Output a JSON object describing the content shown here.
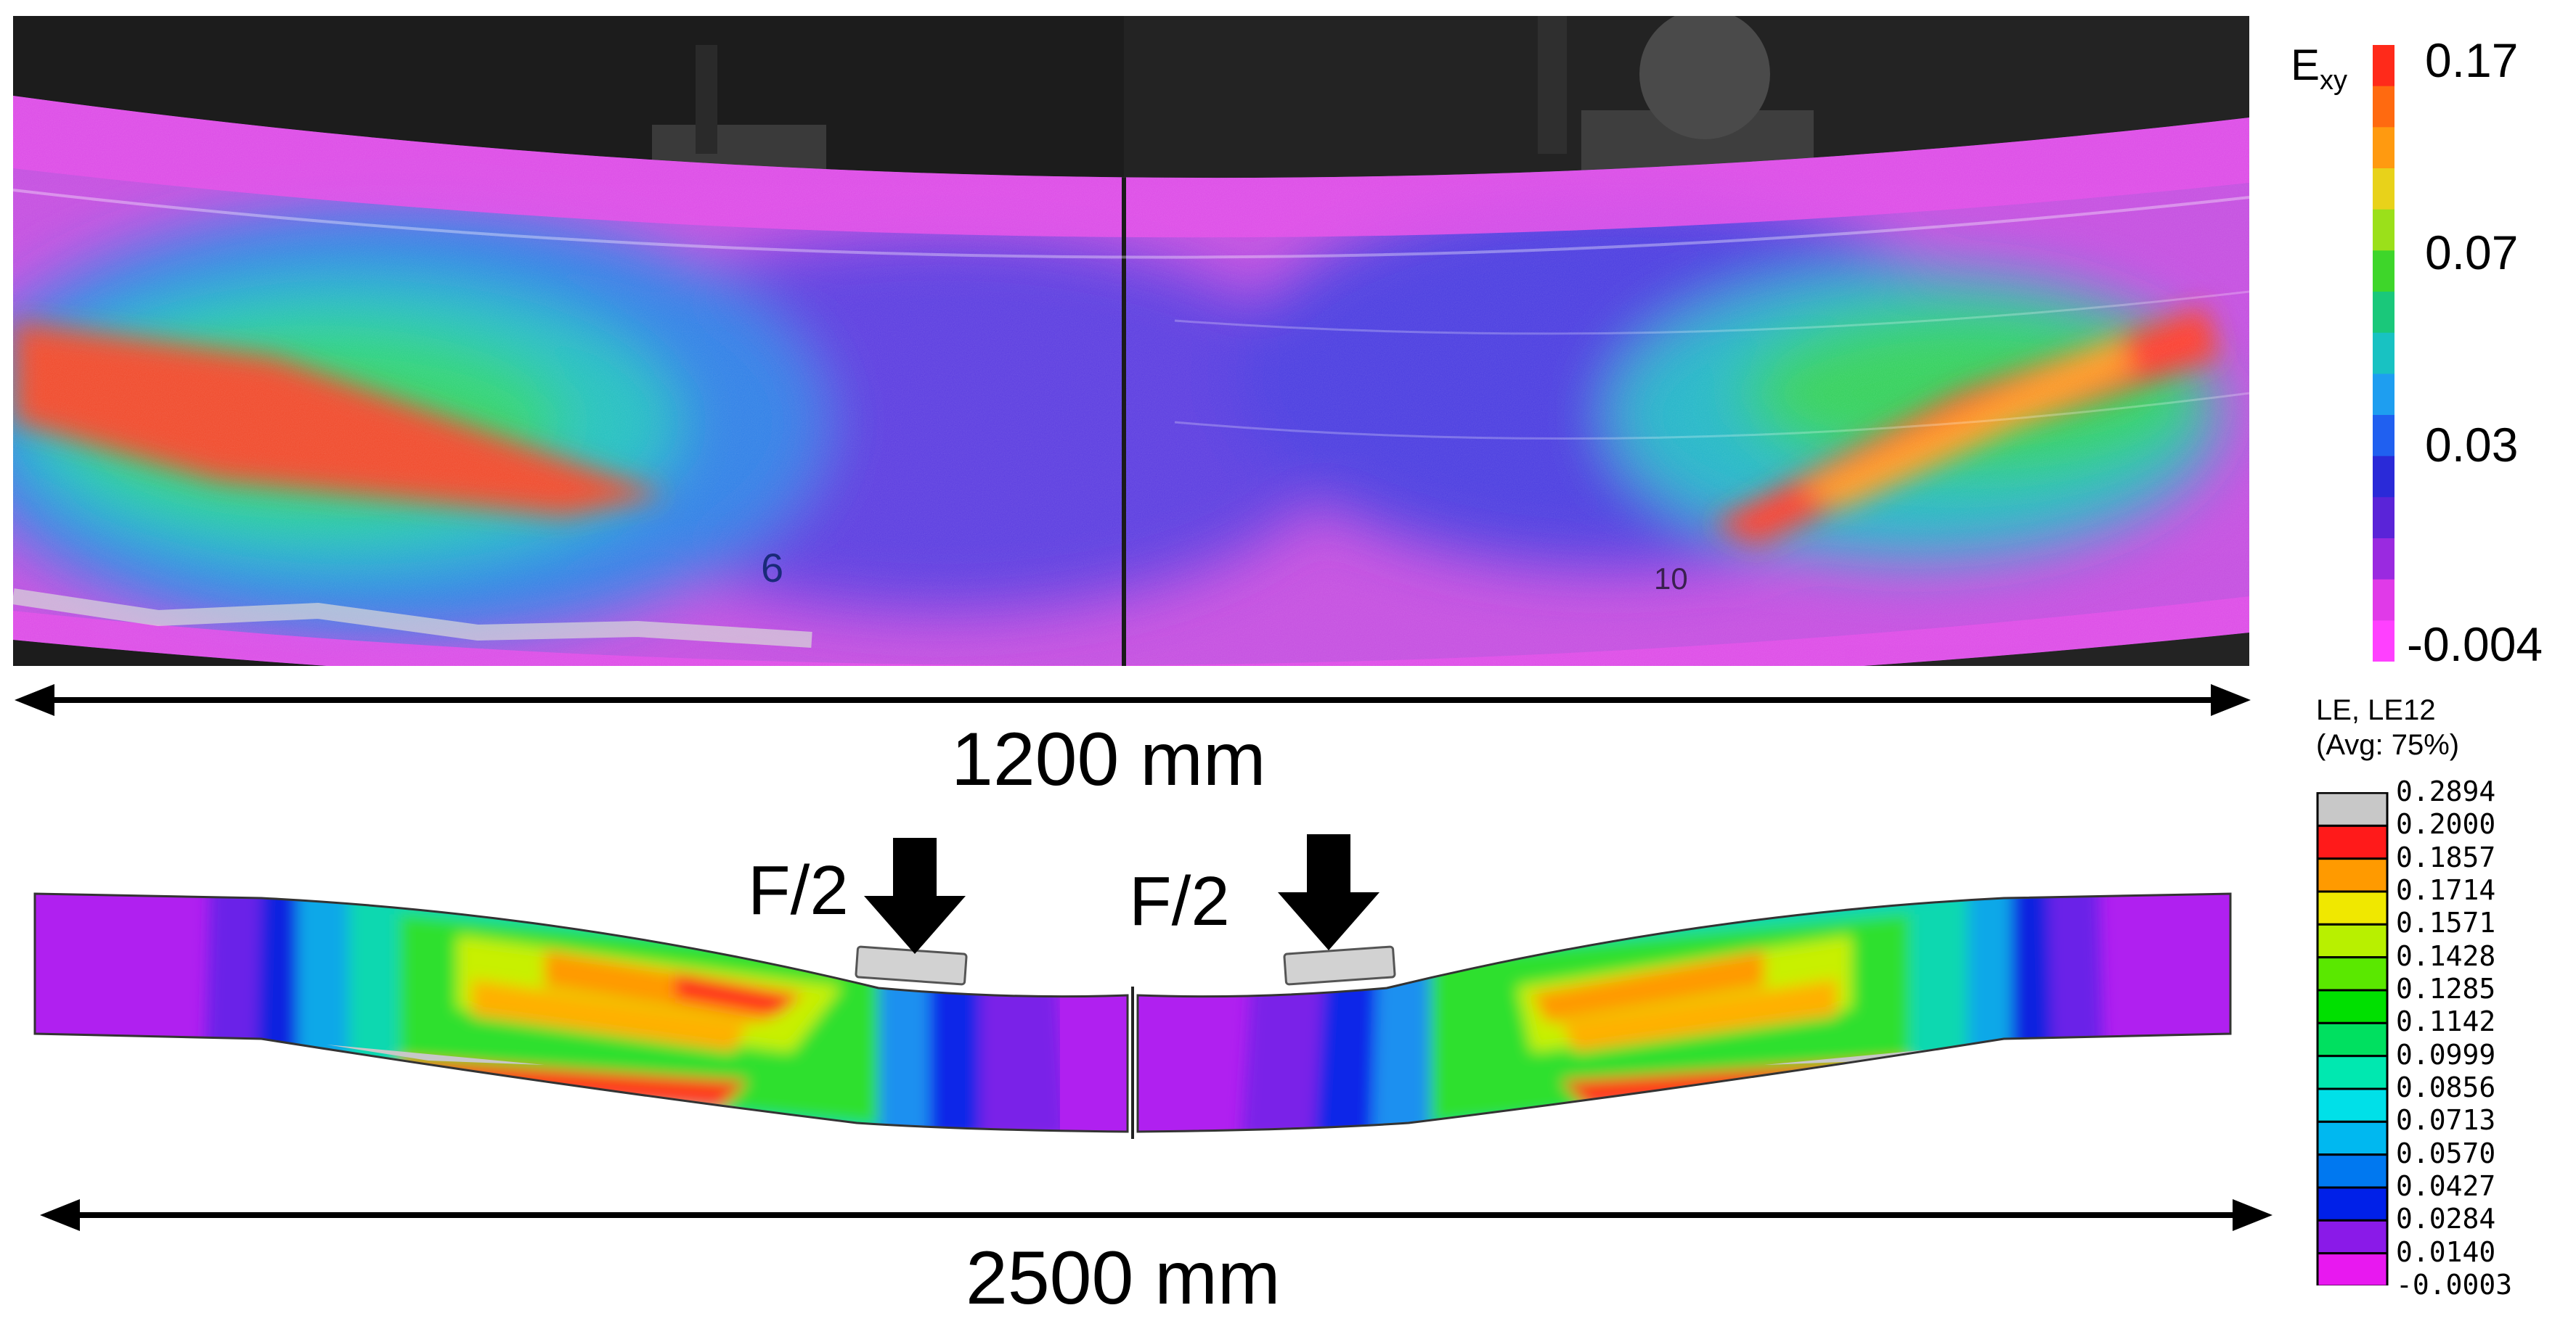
{
  "photo_panel": {
    "overlay_marks": [
      "10",
      "6"
    ]
  },
  "dimension_top": {
    "label": "1200 mm"
  },
  "dimension_bottom": {
    "label": "2500 mm"
  },
  "loads": [
    {
      "label": "F/2"
    },
    {
      "label": "F/2"
    }
  ],
  "colorbar_dic": {
    "title_main": "E",
    "title_sub": "xy",
    "ticks": [
      "0.17",
      "0.07",
      "0.03",
      "-0.004"
    ],
    "colors_top_to_bottom": [
      "#ff2a1a",
      "#ff6a10",
      "#ff9a10",
      "#e8d21a",
      "#9be01a",
      "#3ed62a",
      "#1ac87a",
      "#18c2c2",
      "#1e9ef0",
      "#2060f0",
      "#2a2ad8",
      "#5a24d8",
      "#9a2ae0",
      "#e03ae8",
      "#ff40ff"
    ]
  },
  "colorbar_fem": {
    "title_line1": "LE, LE12",
    "title_line2": "(Avg: 75%)",
    "ticks": [
      "0.2894",
      "0.2000",
      "0.1857",
      "0.1714",
      "0.1571",
      "0.1428",
      "0.1285",
      "0.1142",
      "0.0999",
      "0.0856",
      "0.0713",
      "0.0570",
      "0.0427",
      "0.0284",
      "0.0140",
      "-0.0003"
    ],
    "colors_top_to_bottom": [
      "#c8c8c8",
      "#ff1a1a",
      "#ff9a00",
      "#f0e800",
      "#b8f000",
      "#5ae800",
      "#00e000",
      "#00e060",
      "#00e8b0",
      "#00e0e8",
      "#00b8f0",
      "#0078f0",
      "#0020e8",
      "#8a1ae8",
      "#e818f0"
    ]
  }
}
